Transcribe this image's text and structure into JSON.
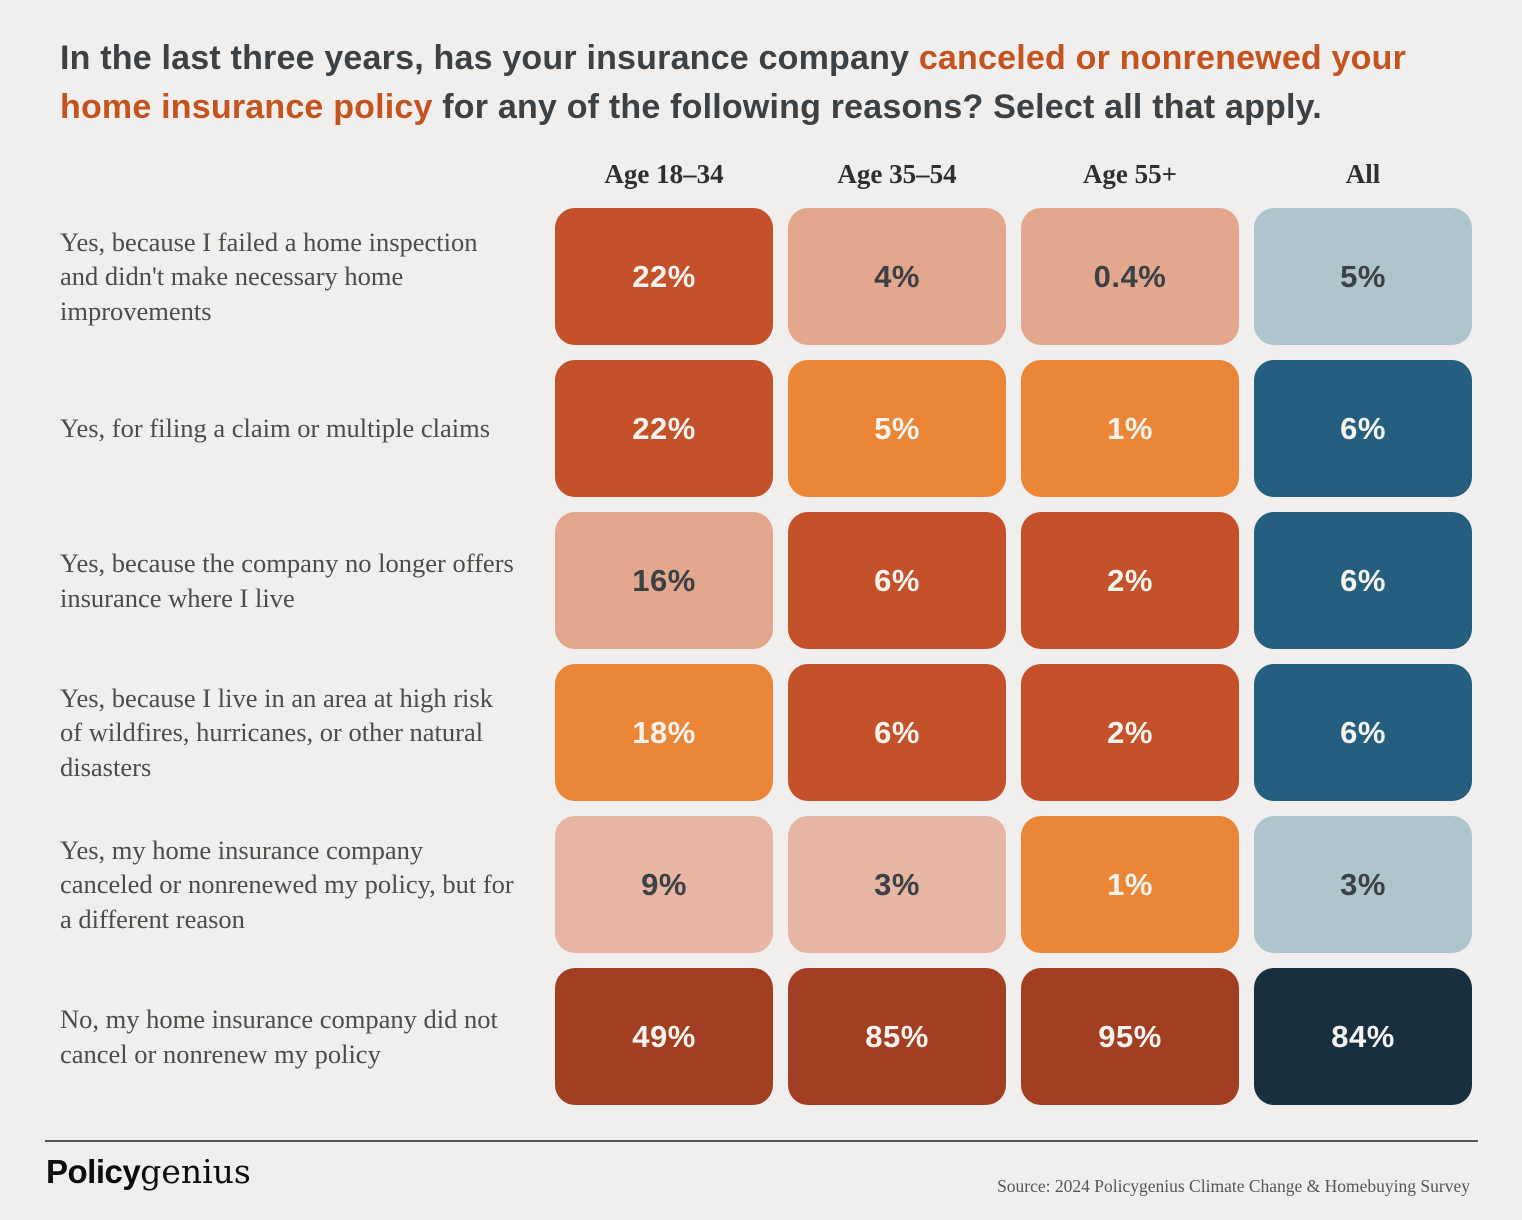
{
  "palette": {
    "background": "#f0efed",
    "text_dark": "#3c4145",
    "accent_orange": "#c3531f",
    "label_gray": "#4c4c4a",
    "dark_red": "#c4512a",
    "brown_red": "#a23f22",
    "orange": "#ec8637",
    "salmon": "#e3a78d",
    "pink": "#e6b5a3",
    "light_blue": "#aec5ce",
    "teal": "#245f7f",
    "navy": "#172f3f",
    "cell_text_light": "#f6f3ee",
    "divider": "#55565a",
    "source_gray": "#55565a",
    "logo_black": "#0e0e0e"
  },
  "title": {
    "parts": [
      {
        "text": "In the last three years, has your insurance company "
      },
      {
        "text": "canceled or nonrenewed your home insurance policy",
        "accent": true
      },
      {
        "text": " for any of the following reasons? Select all that apply."
      }
    ]
  },
  "chart_data": {
    "type": "heatmap",
    "title": "In the last three years, has your insurance company canceled or nonrenewed your home insurance policy for any of the following reasons? Select all that apply.",
    "columns": [
      "Age 18–34",
      "Age 35–54",
      "Age 55+",
      "All"
    ],
    "rows": [
      {
        "label": "Yes, because I failed a home inspection and didn't make necessary home improvements",
        "values": [
          22,
          4,
          0.4,
          5
        ],
        "cells": [
          {
            "v": "22%",
            "value": 22,
            "bg": "dark_red",
            "tx": "light"
          },
          {
            "v": "4%",
            "value": 4,
            "bg": "salmon",
            "tx": "dark"
          },
          {
            "v": "0.4%",
            "value": 0.4,
            "bg": "salmon",
            "tx": "dark"
          },
          {
            "v": "5%",
            "value": 5,
            "bg": "light_blue",
            "tx": "dark"
          }
        ]
      },
      {
        "label": "Yes, for filing a claim or multiple claims",
        "values": [
          22,
          5,
          1,
          6
        ],
        "cells": [
          {
            "v": "22%",
            "value": 22,
            "bg": "dark_red",
            "tx": "light"
          },
          {
            "v": "5%",
            "value": 5,
            "bg": "orange",
            "tx": "light"
          },
          {
            "v": "1%",
            "value": 1,
            "bg": "orange",
            "tx": "light"
          },
          {
            "v": "6%",
            "value": 6,
            "bg": "teal",
            "tx": "light"
          }
        ]
      },
      {
        "label": "Yes, because the company no longer offers insurance where I live",
        "values": [
          16,
          6,
          2,
          6
        ],
        "cells": [
          {
            "v": "16%",
            "value": 16,
            "bg": "salmon",
            "tx": "dark"
          },
          {
            "v": "6%",
            "value": 6,
            "bg": "dark_red",
            "tx": "light"
          },
          {
            "v": "2%",
            "value": 2,
            "bg": "dark_red",
            "tx": "light"
          },
          {
            "v": "6%",
            "value": 6,
            "bg": "teal",
            "tx": "light"
          }
        ]
      },
      {
        "label": "Yes, because I live in an area at high risk of wildfires, hurricanes, or other natural disasters",
        "values": [
          18,
          6,
          2,
          6
        ],
        "cells": [
          {
            "v": "18%",
            "value": 18,
            "bg": "orange",
            "tx": "light"
          },
          {
            "v": "6%",
            "value": 6,
            "bg": "dark_red",
            "tx": "light"
          },
          {
            "v": "2%",
            "value": 2,
            "bg": "dark_red",
            "tx": "light"
          },
          {
            "v": "6%",
            "value": 6,
            "bg": "teal",
            "tx": "light"
          }
        ]
      },
      {
        "label": "Yes, my home insurance company canceled or nonrenewed my policy, but for a different reason",
        "values": [
          9,
          3,
          1,
          3
        ],
        "cells": [
          {
            "v": "9%",
            "value": 9,
            "bg": "pink",
            "tx": "dark"
          },
          {
            "v": "3%",
            "value": 3,
            "bg": "pink",
            "tx": "dark"
          },
          {
            "v": "1%",
            "value": 1,
            "bg": "orange",
            "tx": "light"
          },
          {
            "v": "3%",
            "value": 3,
            "bg": "light_blue",
            "tx": "dark"
          }
        ]
      },
      {
        "label": "No, my home insurance company did not cancel or nonrenew my policy",
        "values": [
          49,
          85,
          95,
          84
        ],
        "cells": [
          {
            "v": "49%",
            "value": 49,
            "bg": "brown_red",
            "tx": "light"
          },
          {
            "v": "85%",
            "value": 85,
            "bg": "brown_red",
            "tx": "light"
          },
          {
            "v": "95%",
            "value": 95,
            "bg": "brown_red",
            "tx": "light"
          },
          {
            "v": "84%",
            "value": 84,
            "bg": "navy",
            "tx": "light"
          }
        ]
      }
    ]
  },
  "footer": {
    "logo_bold": "Policy",
    "logo_serif": "genius",
    "source": "Source: 2024 Policygenius Climate Change & Homebuying Survey"
  }
}
